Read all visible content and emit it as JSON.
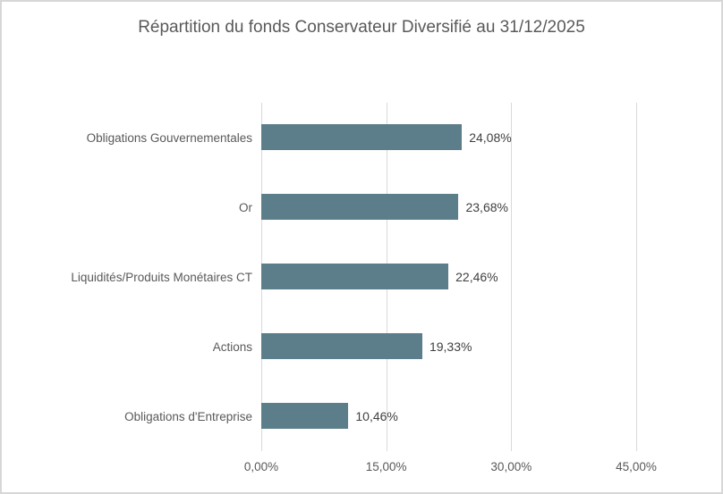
{
  "chart_data": {
    "type": "bar",
    "orientation": "horizontal",
    "title": "Répartition du fonds Conservateur Diversifié au 31/12/2025",
    "categories": [
      "Obligations Gouvernementales",
      "Or",
      "Liquidités/Produits Monétaires CT",
      "Actions",
      "Obligations d'Entreprise"
    ],
    "values": [
      24.08,
      23.68,
      22.46,
      19.33,
      10.46
    ],
    "value_labels": [
      "24,08%",
      "23,68%",
      "22,46%",
      "19,33%",
      "10,46%"
    ],
    "xlabel": "",
    "ylabel": "",
    "xlim": [
      0,
      45
    ],
    "axis_max": 45,
    "x_ticks": [
      {
        "label": "0,00%",
        "value": 0
      },
      {
        "label": "15,00%",
        "value": 15
      },
      {
        "label": "30,00%",
        "value": 30
      },
      {
        "label": "45,00%",
        "value": 45
      }
    ],
    "grid": "vertical-only",
    "legend": "none",
    "colors": {
      "bar": "#5C7E8B",
      "gridline": "#D9D9D9",
      "title_text": "#595959",
      "category_text": "#595959",
      "value_text": "#404040",
      "tick_text": "#595959",
      "chart_border": "#D7D7D7",
      "background": "#FFFFFF"
    }
  }
}
